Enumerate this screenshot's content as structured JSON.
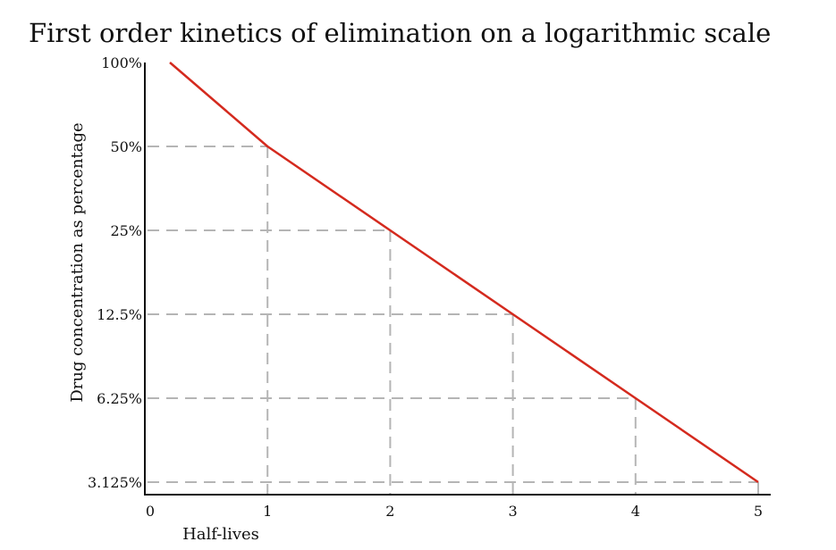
{
  "chart_data": {
    "type": "line",
    "title": "First order kinetics of elimination on a logarithmic scale",
    "xlabel": "Half-lives",
    "ylabel": "Drug concentration as percentage",
    "y_scale": "log2",
    "x_ticks": [
      {
        "value": 0,
        "label": "0"
      },
      {
        "value": 1,
        "label": "1"
      },
      {
        "value": 2,
        "label": "2"
      },
      {
        "value": 3,
        "label": "3"
      },
      {
        "value": 4,
        "label": "4"
      },
      {
        "value": 5,
        "label": "5"
      }
    ],
    "y_ticks": [
      {
        "value": 100,
        "label": "100%"
      },
      {
        "value": 50,
        "label": "50%"
      },
      {
        "value": 25,
        "label": "25%"
      },
      {
        "value": 12.5,
        "label": "12.5%"
      },
      {
        "value": 6.25,
        "label": "6.25%"
      },
      {
        "value": 3.125,
        "label": "3.125%"
      }
    ],
    "series": [
      {
        "color": "#d42a1e",
        "points": [
          {
            "x": 0,
            "y": 100
          },
          {
            "x": 1,
            "y": 50
          },
          {
            "x": 2,
            "y": 25
          },
          {
            "x": 3,
            "y": 12.5
          },
          {
            "x": 4,
            "y": 6.25
          },
          {
            "x": 5,
            "y": 3.125
          }
        ]
      }
    ],
    "guide_lines": [
      {
        "x": 1,
        "y": 50
      },
      {
        "x": 2,
        "y": 25
      },
      {
        "x": 3,
        "y": 12.5
      },
      {
        "x": 4,
        "y": 6.25
      },
      {
        "x": 5,
        "y": 3.125
      }
    ],
    "grid": false,
    "legend": "none",
    "colors": {
      "line": "#d42a1e",
      "guide": "#b5b5b5",
      "axis": "#111111"
    }
  }
}
